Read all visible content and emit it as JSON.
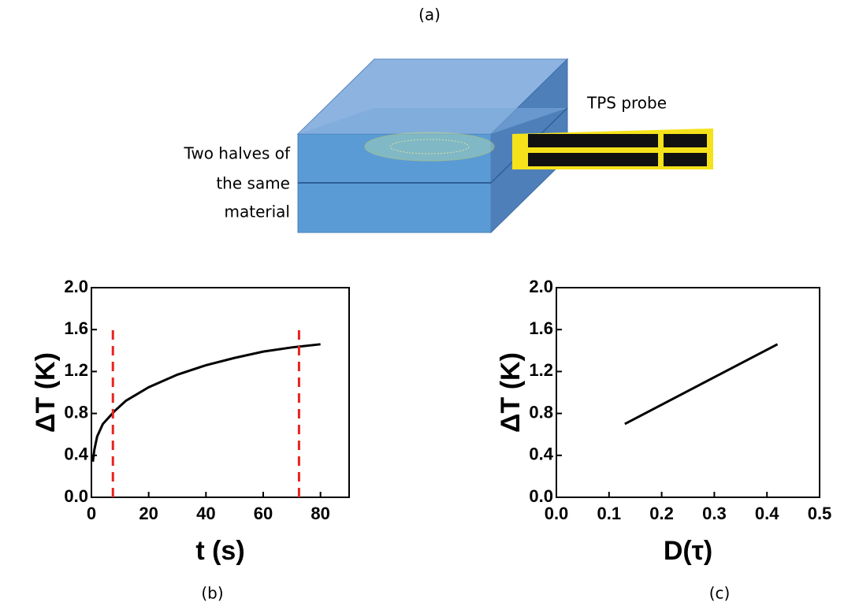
{
  "panel_a": {
    "label": "(a)",
    "probe_label": "TPS probe",
    "sample_label": [
      "Two halves of",
      "the same",
      "material"
    ]
  },
  "chart_data": [
    {
      "type": "line",
      "panel_label": "(b)",
      "x_label": "t (s)",
      "y_label": "ΔT (K)",
      "xlim": [
        0,
        90
      ],
      "xticks": [
        0,
        20,
        40,
        60,
        80
      ],
      "ylim": [
        0,
        2
      ],
      "yticks": [
        {
          "value": 0,
          "label": "0.0"
        },
        {
          "value": 0.4,
          "label": "0.4"
        },
        {
          "value": 0.8,
          "label": "0.8"
        },
        {
          "value": 1.2,
          "label": "1.2"
        },
        {
          "value": 1.6,
          "label": "1.6"
        },
        {
          "value": 2,
          "label": "2.0"
        }
      ],
      "series": [
        {
          "color": "#000000",
          "x": [
            0.5,
            1,
            2,
            4,
            8,
            12,
            20,
            30,
            40,
            50,
            60,
            70,
            80
          ],
          "values": [
            0.34,
            0.45,
            0.58,
            0.7,
            0.82,
            0.92,
            1.05,
            1.17,
            1.26,
            1.33,
            1.39,
            1.43,
            1.46
          ]
        }
      ],
      "reference_lines": {
        "x": [
          7.5,
          72.5
        ],
        "y_top": 1.65,
        "color": "#e8231f"
      }
    },
    {
      "type": "line",
      "panel_label": "(c)",
      "x_label": "D(τ)",
      "y_label": "ΔT (K)",
      "xlim": [
        0,
        0.5
      ],
      "xticks": [
        {
          "value": 0,
          "label": "0.0"
        },
        0.1,
        0.2,
        0.3,
        0.4,
        0.5
      ],
      "ylim": [
        0,
        2
      ],
      "yticks": [
        {
          "value": 0,
          "label": "0.0"
        },
        {
          "value": 0.4,
          "label": "0.4"
        },
        {
          "value": 0.8,
          "label": "0.8"
        },
        {
          "value": 1.2,
          "label": "1.2"
        },
        {
          "value": 1.6,
          "label": "1.6"
        },
        {
          "value": 2,
          "label": "2.0"
        }
      ],
      "series": [
        {
          "color": "#000000",
          "x": [
            0.13,
            0.42
          ],
          "values": [
            0.7,
            1.46
          ]
        }
      ]
    }
  ]
}
